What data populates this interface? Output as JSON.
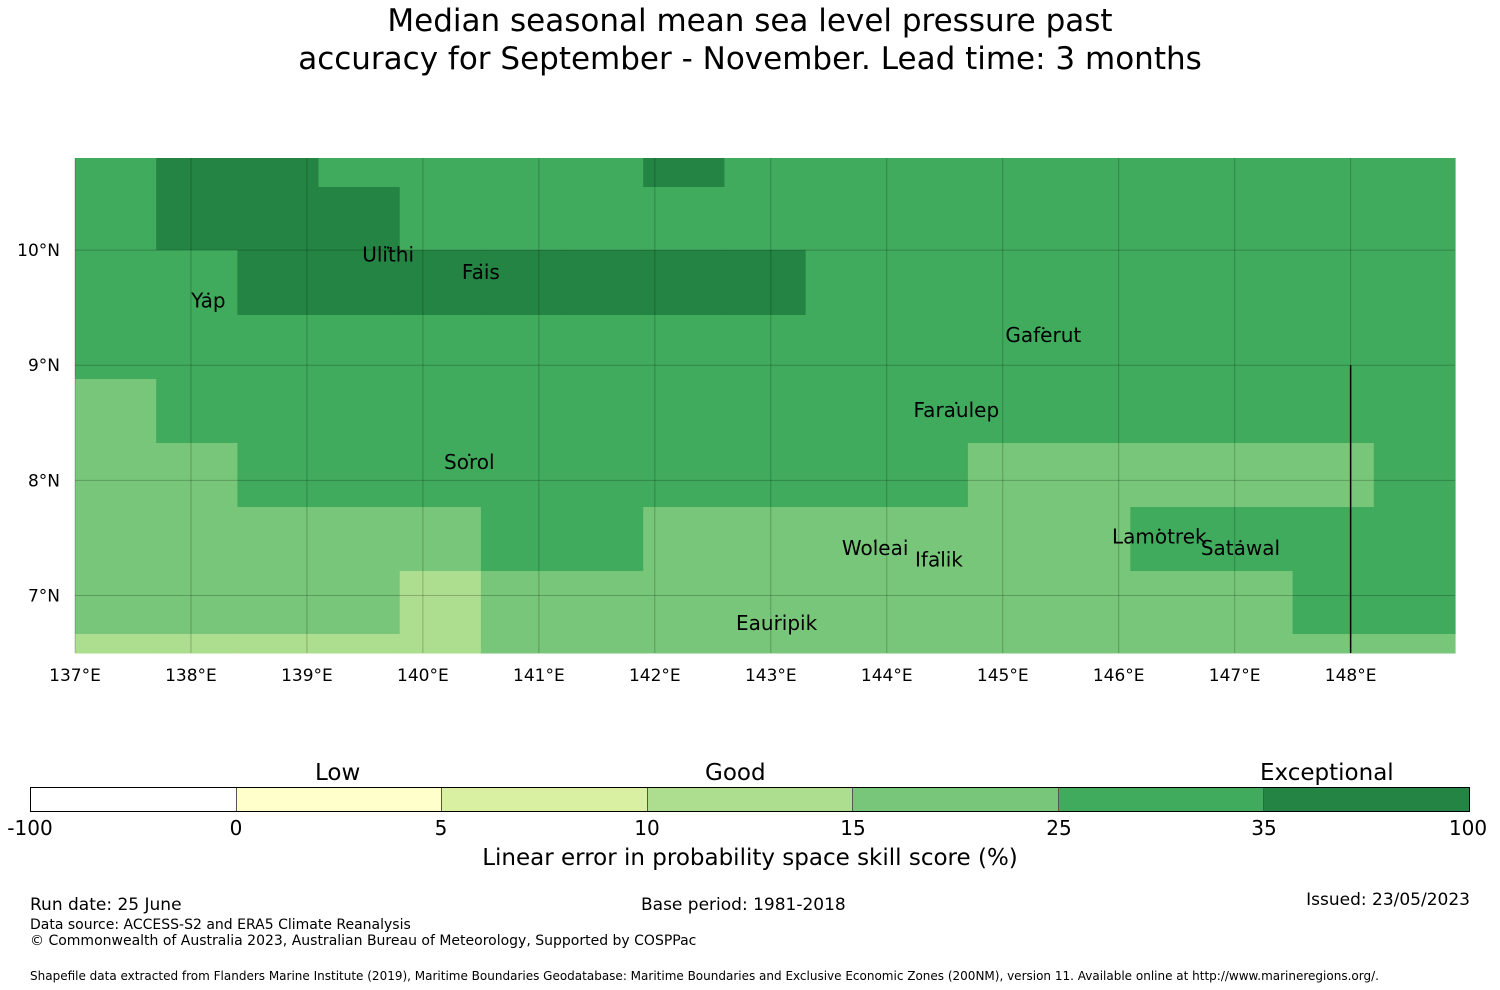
{
  "title_line1": "Median seasonal mean sea level pressure past",
  "title_line2": "accuracy for September - November. Lead time: 3 months",
  "map": {
    "lon_range": [
      137.0,
      148.9
    ],
    "lat_range": [
      6.5,
      10.8
    ],
    "x_ticks": [
      "137°E",
      "138°E",
      "139°E",
      "140°E",
      "141°E",
      "142°E",
      "143°E",
      "144°E",
      "145°E",
      "146°E",
      "147°E",
      "148°E"
    ],
    "y_ticks": [
      "10°N",
      "9°N",
      "8°N",
      "7°N"
    ],
    "grid_cell_deg": 0.833,
    "colors": {
      "c15_25": "#78c679",
      "c25_35": "#41ab5d",
      "c35_100": "#238443",
      "c10_15": "#addd8e",
      "c5_10": "#d9f0a3"
    },
    "grid_rows": [
      [
        "c25_35",
        "c35_100",
        "c35_100",
        "c25_35",
        "c25_35",
        "c25_35",
        "c25_35",
        "c35_100",
        "c25_35",
        "c25_35",
        "c25_35",
        "c25_35",
        "c25_35",
        "c25_35",
        "c25_35",
        "c25_35",
        "c25_35"
      ],
      [
        "c25_35",
        "c35_100",
        "c35_100",
        "c35_100",
        "c25_35",
        "c25_35",
        "c25_35",
        "c25_35",
        "c25_35",
        "c25_35",
        "c25_35",
        "c25_35",
        "c25_35",
        "c25_35",
        "c25_35",
        "c25_35",
        "c25_35"
      ],
      [
        "c25_35",
        "c25_35",
        "c35_100",
        "c35_100",
        "c35_100",
        "c35_100",
        "c35_100",
        "c35_100",
        "c35_100",
        "c25_35",
        "c25_35",
        "c25_35",
        "c25_35",
        "c25_35",
        "c25_35",
        "c25_35",
        "c25_35"
      ],
      [
        "c25_35",
        "c25_35",
        "c25_35",
        "c25_35",
        "c25_35",
        "c25_35",
        "c25_35",
        "c25_35",
        "c25_35",
        "c25_35",
        "c25_35",
        "c25_35",
        "c25_35",
        "c25_35",
        "c25_35",
        "c25_35",
        "c25_35"
      ],
      [
        "c15_25",
        "c25_35",
        "c25_35",
        "c25_35",
        "c25_35",
        "c25_35",
        "c25_35",
        "c25_35",
        "c25_35",
        "c25_35",
        "c25_35",
        "c25_35",
        "c25_35",
        "c25_35",
        "c25_35",
        "c25_35",
        "c25_35"
      ],
      [
        "c15_25",
        "c15_25",
        "c25_35",
        "c25_35",
        "c25_35",
        "c25_35",
        "c25_35",
        "c25_35",
        "c25_35",
        "c25_35",
        "c25_35",
        "c15_25",
        "c15_25",
        "c15_25",
        "c15_25",
        "c15_25",
        "c25_35"
      ],
      [
        "c15_25",
        "c15_25",
        "c15_25",
        "c15_25",
        "c15_25",
        "c25_35",
        "c25_35",
        "c15_25",
        "c15_25",
        "c15_25",
        "c15_25",
        "c15_25",
        "c15_25",
        "c25_35",
        "c25_35",
        "c25_35",
        "c25_35"
      ],
      [
        "c15_25",
        "c15_25",
        "c15_25",
        "c15_25",
        "c10_15",
        "c15_25",
        "c15_25",
        "c15_25",
        "c15_25",
        "c15_25",
        "c15_25",
        "c15_25",
        "c15_25",
        "c15_25",
        "c15_25",
        "c25_35",
        "c25_35"
      ],
      [
        "c10_15",
        "c10_15",
        "c10_15",
        "c10_15",
        "c10_15",
        "c15_25",
        "c15_25",
        "c15_25",
        "c15_25",
        "c15_25",
        "c15_25",
        "c15_25",
        "c15_25",
        "c15_25",
        "c15_25",
        "c15_25",
        "c15_25"
      ]
    ],
    "overrides": [
      {
        "row": 0,
        "col": 4,
        "color": "c25_35"
      },
      {
        "row": 0,
        "col": 7,
        "color": "c35_100"
      },
      {
        "row": 0,
        "col": 10,
        "color": "c35_100"
      }
    ],
    "islands": [
      {
        "name": "Ulithi",
        "lon": 139.7,
        "lat": 9.9
      },
      {
        "name": "Fais",
        "lon": 140.5,
        "lat": 9.75
      },
      {
        "name": "Yap",
        "lon": 138.15,
        "lat": 9.5
      },
      {
        "name": "Gaferut",
        "lon": 145.35,
        "lat": 9.2
      },
      {
        "name": "Faraulep",
        "lon": 144.6,
        "lat": 8.55
      },
      {
        "name": "Sorol",
        "lon": 140.4,
        "lat": 8.1
      },
      {
        "name": "Woleai",
        "lon": 143.9,
        "lat": 7.35
      },
      {
        "name": "Ifalik",
        "lon": 144.45,
        "lat": 7.25
      },
      {
        "name": "Lamotrek",
        "lon": 146.35,
        "lat": 7.45
      },
      {
        "name": "Satawal",
        "lon": 147.05,
        "lat": 7.35
      },
      {
        "name": "Eauripik",
        "lon": 143.05,
        "lat": 6.7
      }
    ],
    "boundary_line": {
      "lon": 148.0,
      "lat_from": 6.5,
      "lat_to": 9.0
    }
  },
  "colorbar": {
    "categories": [
      "Low",
      "Good",
      "Exceptional"
    ],
    "ticks": [
      "-100",
      "0",
      "5",
      "10",
      "15",
      "25",
      "35",
      "100"
    ],
    "colors": [
      "#ffffff",
      "#ffffcc",
      "#d9f0a3",
      "#addd8e",
      "#78c679",
      "#41ab5d",
      "#238443"
    ],
    "title": "Linear error in probability space skill score (%)"
  },
  "footer": {
    "run_date": "Run date: 25 June",
    "base_period": "Base period: 1981-2018",
    "issued": "Issued: 23/05/2023",
    "data_source": "Data source: ACCESS-S2 and ERA5 Climate Reanalysis",
    "copyright": "© Commonwealth of Australia 2023, Australian Bureau of Meteorology, Supported by COSPPac",
    "shapefile": "Shapefile data extracted from Flanders Marine Institute (2019), Maritime Boundaries Geodatabase: Maritime Boundaries and Exclusive Economic Zones (200NM), version 11. Available online at http://www.marineregions.org/."
  }
}
